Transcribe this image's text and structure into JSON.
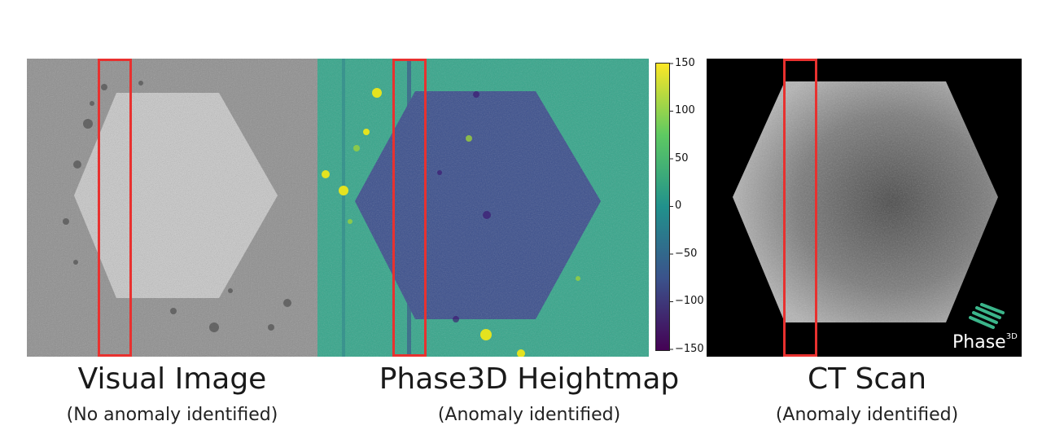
{
  "panels": [
    {
      "title": "Visual Image",
      "subtitle": "(No anomaly identified)"
    },
    {
      "title": "Phase3D Heightmap",
      "subtitle": "(Anomaly identified)"
    },
    {
      "title": "CT Scan",
      "subtitle": "(Anomaly identified)"
    }
  ],
  "colorbar": {
    "ticks": [
      "150",
      "100",
      "50",
      "0",
      "−50",
      "−100",
      "−150"
    ],
    "colormap": "viridis"
  },
  "logo": {
    "text": "Phase",
    "superscript": "3D"
  },
  "colors": {
    "highlight_box": "#e8312f"
  }
}
